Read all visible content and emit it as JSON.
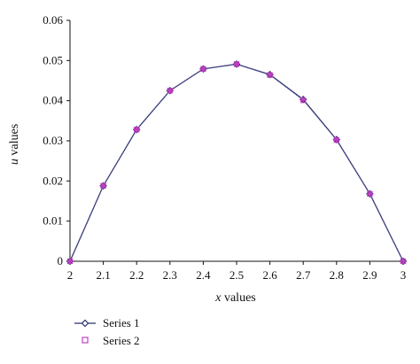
{
  "chart_data": {
    "type": "line",
    "title": "",
    "xlabel": {
      "var": "x",
      "rest": " values"
    },
    "ylabel": {
      "var": "u",
      "rest": " values"
    },
    "x_ticks": [
      "2",
      "2.1",
      "2.2",
      "2.3",
      "2.4",
      "2.5",
      "2.6",
      "2.7",
      "2.8",
      "2.9",
      "3"
    ],
    "y_ticks": [
      "0",
      "0.01",
      "0.02",
      "0.03",
      "0.04",
      "0.05",
      "0.06"
    ],
    "xlim": [
      2,
      3
    ],
    "ylim": [
      0,
      0.06
    ],
    "grid": false,
    "legend_position": "bottom-left",
    "series": [
      {
        "name": "Series 1",
        "color": "#2b2f6e",
        "marker_color": "#c040c0",
        "marker": "diamond",
        "x": [
          2,
          2.1,
          2.2,
          2.3,
          2.4,
          2.5,
          2.6,
          2.7,
          2.8,
          2.9,
          3
        ],
        "y": [
          0,
          0.0188,
          0.0328,
          0.0425,
          0.0479,
          0.0491,
          0.0465,
          0.0403,
          0.0303,
          0.0168,
          0
        ]
      },
      {
        "name": "Series 2",
        "color": "#5a5a9a",
        "marker_color": "#c040c0",
        "marker": "square",
        "x": [
          2,
          2.1,
          2.2,
          2.3,
          2.4,
          2.5,
          2.6,
          2.7,
          2.8,
          2.9,
          3
        ],
        "y": [
          0,
          0.0188,
          0.0328,
          0.0425,
          0.0479,
          0.0491,
          0.0464,
          0.0401,
          0.0302,
          0.0168,
          0
        ]
      }
    ]
  }
}
